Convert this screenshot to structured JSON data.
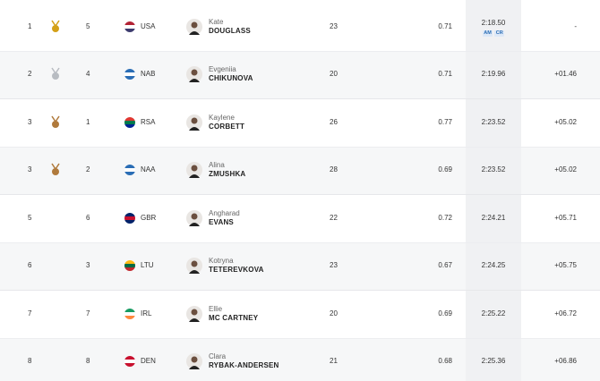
{
  "table": {
    "rows": [
      {
        "rank": "1",
        "lane": "5",
        "country": "USA",
        "first": "Kate",
        "last": "DOUGLASS",
        "age": "23",
        "reaction": "0.71",
        "time": "2:18.50",
        "records": [
          "AM",
          "CR"
        ],
        "behind": "-",
        "medal": "#d4a017",
        "flag": [
          "#b22234",
          "#ffffff",
          "#3c3b6e"
        ]
      },
      {
        "rank": "2",
        "lane": "4",
        "country": "NAB",
        "first": "Evgeniia",
        "last": "CHIKUNOVA",
        "age": "20",
        "reaction": "0.71",
        "time": "2:19.96",
        "behind": "+01.46",
        "medal": "#b8bcc2",
        "flag": [
          "#2a6db5",
          "#ffffff",
          "#2a6db5"
        ]
      },
      {
        "rank": "3",
        "lane": "1",
        "country": "RSA",
        "first": "Kaylene",
        "last": "CORBETT",
        "age": "26",
        "reaction": "0.77",
        "time": "2:23.52",
        "behind": "+05.02",
        "medal": "#b07a3c",
        "flag": [
          "#de3831",
          "#007a4d",
          "#002395"
        ]
      },
      {
        "rank": "3",
        "lane": "2",
        "country": "NAA",
        "first": "Alina",
        "last": "ZMUSHKA",
        "age": "28",
        "reaction": "0.69",
        "time": "2:23.52",
        "behind": "+05.02",
        "medal": "#b07a3c",
        "flag": [
          "#2a6db5",
          "#ffffff",
          "#2a6db5"
        ]
      },
      {
        "rank": "5",
        "lane": "6",
        "country": "GBR",
        "first": "Angharad",
        "last": "EVANS",
        "age": "22",
        "reaction": "0.72",
        "time": "2:24.21",
        "behind": "+05.71",
        "flag": [
          "#012169",
          "#c8102e",
          "#012169"
        ]
      },
      {
        "rank": "6",
        "lane": "3",
        "country": "LTU",
        "first": "Kotryna",
        "last": "TETEREVKOVA",
        "age": "23",
        "reaction": "0.67",
        "time": "2:24.25",
        "behind": "+05.75",
        "flag": [
          "#fdb913",
          "#006a44",
          "#c1272d"
        ]
      },
      {
        "rank": "7",
        "lane": "7",
        "country": "IRL",
        "first": "Ellie",
        "last": "MC CARTNEY",
        "age": "20",
        "reaction": "0.69",
        "time": "2:25.22",
        "behind": "+06.72",
        "flag": [
          "#169b62",
          "#ffffff",
          "#ff883e"
        ]
      },
      {
        "rank": "8",
        "lane": "8",
        "country": "DEN",
        "first": "Clara",
        "last": "RYBAK-ANDERSEN",
        "age": "21",
        "reaction": "0.68",
        "time": "2:25.36",
        "behind": "+06.86",
        "flag": [
          "#c8102e",
          "#ffffff",
          "#c8102e"
        ]
      }
    ]
  }
}
